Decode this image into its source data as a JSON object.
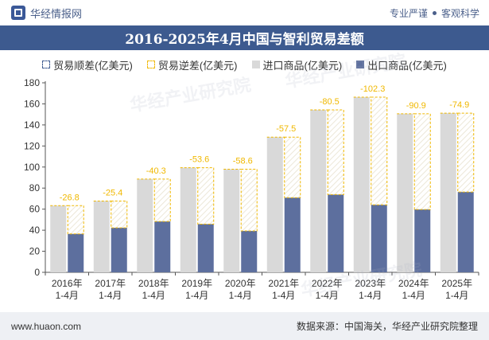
{
  "header": {
    "site_name": "华经情报网",
    "tagline_left": "专业严谨",
    "tagline_right": "客观科学"
  },
  "title": "2016-2025年4月中国与智利贸易差额",
  "legend": {
    "surplus": "贸易顺差(亿美元)",
    "deficit": "贸易逆差(亿美元)",
    "imports": "进口商品(亿美元)",
    "exports": "出口商品(亿美元)"
  },
  "footer": {
    "website": "www.huaon.com",
    "source": "数据来源：中国海关，华经产业研究院整理"
  },
  "watermark": "华经产业研究院",
  "colors": {
    "imports": "#d9d9d9",
    "exports": "#5d6f9e",
    "deficit_border": "#f0b800",
    "deficit_label": "#f0b800",
    "title_bar": "#3d5a8f"
  },
  "chart_data": {
    "type": "bar",
    "categories": [
      "2016年\n1-4月",
      "2017年\n1-4月",
      "2018年\n1-4月",
      "2019年\n1-4月",
      "2020年\n1-4月",
      "2021年\n1-4月",
      "2022年\n1-4月",
      "2023年\n1-4月",
      "2024年\n1-4月",
      "2025年\n1-4月"
    ],
    "series": [
      {
        "name": "进口商品(亿美元)",
        "values": [
          63.3,
          67.7,
          88.6,
          99.4,
          97.9,
          128.4,
          154.3,
          166.4,
          150.6,
          151.2
        ]
      },
      {
        "name": "出口商品(亿美元)",
        "values": [
          36.5,
          42.3,
          48.3,
          45.8,
          39.3,
          70.9,
          73.8,
          64.1,
          59.7,
          76.3
        ]
      },
      {
        "name": "贸易逆差(亿美元)",
        "values": [
          -26.8,
          -25.4,
          -40.3,
          -53.6,
          -58.6,
          -57.5,
          -80.5,
          -102.3,
          -90.9,
          -74.9
        ]
      }
    ],
    "ylim": [
      0,
      180
    ],
    "yticks": [
      0,
      20,
      40,
      60,
      80,
      100,
      120,
      140,
      160,
      180
    ],
    "grid": false,
    "legend_position": "top"
  }
}
